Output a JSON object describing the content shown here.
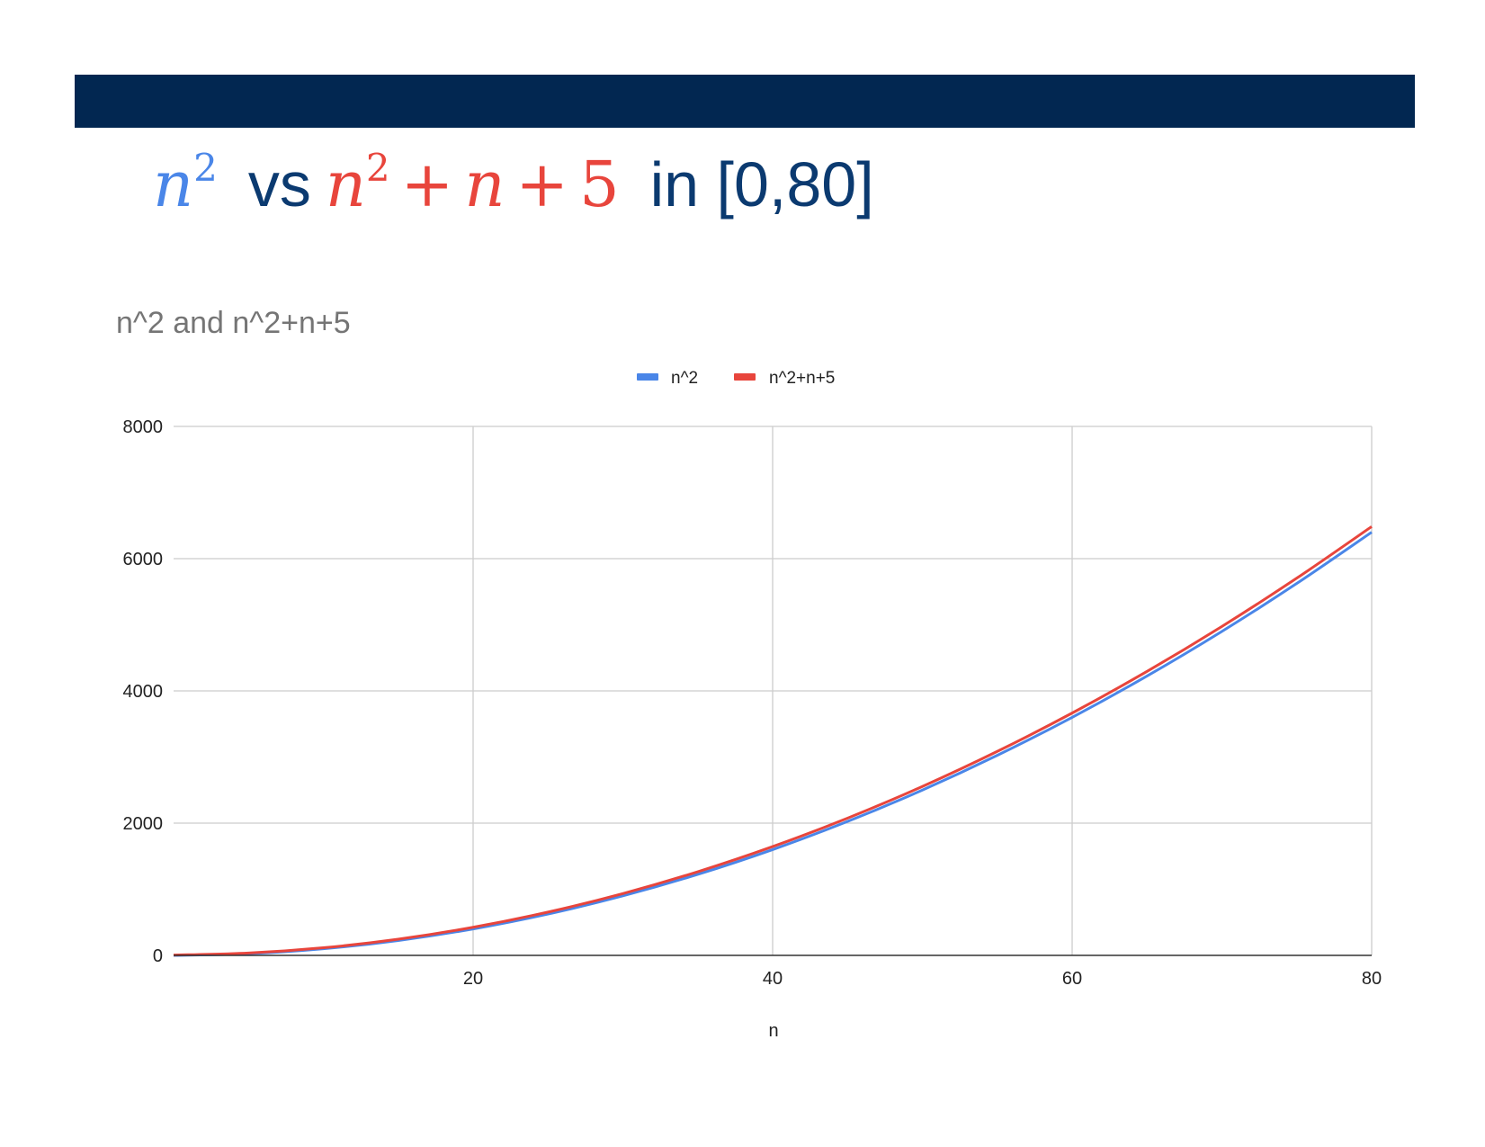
{
  "slide": {
    "title_vs": "vs",
    "title_range": "in [0,80]",
    "math_left": {
      "var": "n",
      "exp": "2"
    },
    "math_right": {
      "var": "n",
      "exp": "2",
      "plus1": "+",
      "var2": "n",
      "plus2": "+",
      "const": "5"
    },
    "colors": {
      "header_bar": "#022751",
      "blue": "#4A86E8",
      "red": "#E8453C",
      "title_text": "#0B3A70"
    }
  },
  "chart_data": {
    "type": "line",
    "title": "n^2 and n^2+n+5",
    "xlabel": "n",
    "ylabel": "",
    "xlim": [
      0,
      80
    ],
    "ylim": [
      0,
      8000
    ],
    "x_ticks": [
      "20",
      "40",
      "60",
      "80"
    ],
    "y_ticks": [
      "0",
      "2000",
      "4000",
      "6000",
      "8000"
    ],
    "grid": true,
    "legend_position": "top-center",
    "x": [
      0,
      5,
      10,
      15,
      20,
      25,
      30,
      35,
      40,
      45,
      50,
      55,
      60,
      65,
      70,
      75,
      80
    ],
    "series": [
      {
        "name": "n^2",
        "color": "#4A86E8",
        "values": [
          0,
          25,
          100,
          225,
          400,
          625,
          900,
          1225,
          1600,
          2025,
          2500,
          3025,
          3600,
          4225,
          4900,
          5625,
          6400
        ]
      },
      {
        "name": "n^2+n+5",
        "color": "#E8453C",
        "values": [
          5,
          35,
          115,
          245,
          425,
          655,
          935,
          1265,
          1645,
          2075,
          2555,
          3085,
          3665,
          4295,
          4975,
          5705,
          6485
        ]
      }
    ]
  }
}
